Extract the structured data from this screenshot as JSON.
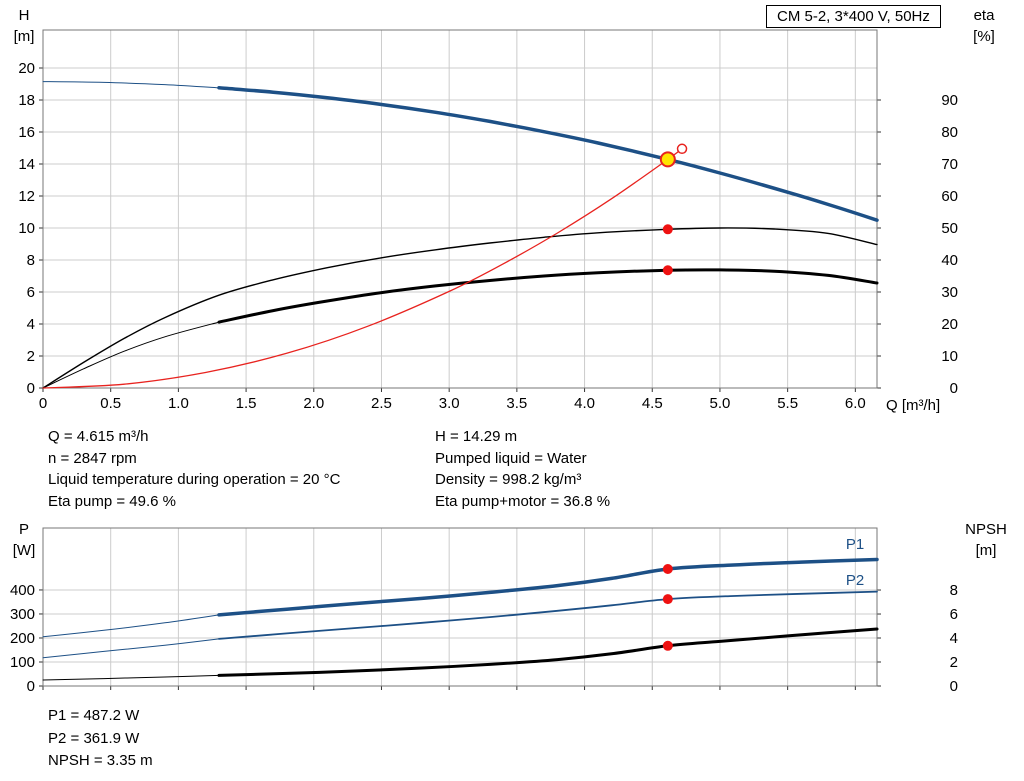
{
  "header": {
    "title_box": "CM 5-2, 3*400 V, 50Hz"
  },
  "top_chart_titles": {
    "left": [
      "H",
      "[m]"
    ],
    "right": [
      "eta",
      "[%]"
    ],
    "x": "Q [m³/h]"
  },
  "bottom_chart_titles": {
    "left": [
      "P",
      "[W]"
    ],
    "right": [
      "NPSH",
      "[m]"
    ]
  },
  "operating_point_info": {
    "left": [
      "Q = 4.615 m³/h",
      "n = 2847 rpm",
      "Liquid temperature during operation = 20 °C",
      "Eta pump = 49.6 %"
    ],
    "right": [
      "H = 14.29 m",
      "Pumped liquid = Water",
      "Density = 998.2 kg/m³",
      "Eta pump+motor = 36.8 %"
    ]
  },
  "bottom_info": [
    "P1 = 487.2 W",
    "P2 = 361.9 W",
    "NPSH = 3.35 m"
  ],
  "colors": {
    "curve_blue": "#1d5086",
    "curve_black": "#000000",
    "curve_red": "#e8231f",
    "marker_red": "#ee1111",
    "duty_yellow": "#ffe400",
    "grid": "#cccccc"
  },
  "chart_data": [
    {
      "type": "line",
      "title": "CM 5-2, 3*400 V, 50Hz",
      "xlabel": "Q [m³/h]",
      "ylabel_left": "H [m]",
      "ylabel_right": "eta [%]",
      "x_range": [
        0,
        6.16
      ],
      "y_left_range": [
        0,
        22.375
      ],
      "y_right_range": [
        0,
        111.875
      ],
      "x_ticks": {
        "values": [
          0,
          0.5,
          1,
          1.5,
          2,
          2.5,
          3,
          3.5,
          4,
          4.5,
          5,
          5.5,
          6
        ],
        "labels": [
          "0",
          "0.5",
          "1.0",
          "1.5",
          "2.0",
          "2.5",
          "3.0",
          "3.5",
          "4.0",
          "4.5",
          "5.0",
          "5.5",
          "6.0"
        ]
      },
      "y_left_ticks": [
        0,
        2,
        4,
        6,
        8,
        10,
        12,
        14,
        16,
        18,
        20
      ],
      "y_right_ticks": [
        0,
        10,
        20,
        30,
        40,
        50,
        60,
        70,
        80,
        90
      ],
      "grid_color": "#cccccc",
      "right_label_x": 958,
      "series": [
        {
          "name": "head-curve-extension",
          "axis": "left",
          "color": "#1d5086",
          "width": 1,
          "points": [
            [
              0,
              19.15
            ],
            [
              0.45,
              19.1
            ],
            [
              0.9,
              18.96
            ],
            [
              1.35,
              18.73
            ]
          ]
        },
        {
          "name": "head-curve",
          "axis": "left",
          "color": "#1d5086",
          "width": 3.5,
          "points": [
            [
              1.3,
              18.76
            ],
            [
              1.7,
              18.49
            ],
            [
              2.1,
              18.14
            ],
            [
              2.5,
              17.72
            ],
            [
              2.9,
              17.23
            ],
            [
              3.3,
              16.66
            ],
            [
              3.7,
              16.02
            ],
            [
              4.1,
              15.31
            ],
            [
              4.615,
              14.29
            ],
            [
              5,
              13.44
            ],
            [
              5.5,
              12.24
            ],
            [
              5.8,
              11.47
            ],
            [
              6.16,
              10.49
            ]
          ]
        },
        {
          "name": "eta-pump-curve",
          "axis": "right",
          "color": "#000000",
          "width": 1.4,
          "points": [
            [
              0,
              0
            ],
            [
              0.3,
              8
            ],
            [
              0.6,
              15.5
            ],
            [
              0.9,
              22
            ],
            [
              1.3,
              29
            ],
            [
              1.7,
              33.8
            ],
            [
              2.1,
              37.6
            ],
            [
              2.5,
              40.7
            ],
            [
              2.9,
              43.2
            ],
            [
              3.3,
              45.3
            ],
            [
              3.7,
              47.1
            ],
            [
              4.1,
              48.5
            ],
            [
              4.615,
              49.6
            ],
            [
              5,
              50
            ],
            [
              5.4,
              49.7
            ],
            [
              5.8,
              48.3
            ],
            [
              6.16,
              44.8
            ]
          ]
        },
        {
          "name": "eta-pump-motor-extension",
          "axis": "right",
          "color": "#000000",
          "width": 1,
          "points": [
            [
              0,
              0
            ],
            [
              0.3,
              6
            ],
            [
              0.6,
              11.5
            ],
            [
              0.9,
              16
            ],
            [
              1.3,
              20.6
            ]
          ]
        },
        {
          "name": "eta-pump-motor-curve",
          "axis": "right",
          "color": "#000000",
          "width": 3,
          "points": [
            [
              1.3,
              20.6
            ],
            [
              1.7,
              24.2
            ],
            [
              2.1,
              27.2
            ],
            [
              2.5,
              29.8
            ],
            [
              2.9,
              31.9
            ],
            [
              3.3,
              33.6
            ],
            [
              3.7,
              35
            ],
            [
              4.1,
              36
            ],
            [
              4.615,
              36.8
            ],
            [
              5,
              36.9
            ],
            [
              5.4,
              36.5
            ],
            [
              5.8,
              35.2
            ],
            [
              6.16,
              32.8
            ]
          ]
        },
        {
          "name": "system-curve",
          "axis": "left",
          "color": "#e8231f",
          "width": 1.3,
          "points": [
            [
              0,
              0
            ],
            [
              0.6,
              0.24
            ],
            [
              1.2,
              0.97
            ],
            [
              1.8,
              2.17
            ],
            [
              2.4,
              3.86
            ],
            [
              3,
              6.04
            ],
            [
              3.4,
              7.76
            ],
            [
              3.8,
              9.69
            ],
            [
              4.2,
              11.83
            ],
            [
              4.615,
              14.29
            ],
            [
              4.72,
              14.95
            ]
          ]
        }
      ],
      "markers": [
        {
          "name": "system-curve-end-ring",
          "axis": "left",
          "q": 4.72,
          "value": 14.95,
          "r": 4.5,
          "fill": "#ffffff",
          "stroke": "#e8231f",
          "stroke_width": 1.5
        },
        {
          "name": "duty-point",
          "axis": "left",
          "q": 4.615,
          "value": 14.29,
          "r": 7,
          "fill": "#ffe400",
          "stroke": "#e8231f",
          "stroke_width": 2
        },
        {
          "name": "eta-pump-point",
          "axis": "right",
          "q": 4.615,
          "value": 49.6,
          "r": 5,
          "fill": "#ee1111"
        },
        {
          "name": "eta-pump-motor-point",
          "axis": "right",
          "q": 4.615,
          "value": 36.8,
          "r": 5,
          "fill": "#ee1111"
        }
      ],
      "curve_labels": []
    },
    {
      "type": "line",
      "title": "",
      "xlabel": "",
      "ylabel_left": "P [W]",
      "ylabel_right": "NPSH [m]",
      "x_range": [
        0,
        6.16
      ],
      "y_left_range": [
        0,
        658
      ],
      "y_right_range": [
        0,
        13.17
      ],
      "x_ticks": {
        "values": [
          0,
          0.5,
          1,
          1.5,
          2,
          2.5,
          3,
          3.5,
          4,
          4.5,
          5,
          5.5,
          6
        ],
        "labels": [
          "",
          "",
          "",
          "",
          "",
          "",
          "",
          "",
          "",
          "",
          "",
          "",
          ""
        ]
      },
      "y_left_ticks": [
        0,
        100,
        200,
        300,
        400
      ],
      "y_right_ticks": [
        0,
        2,
        4,
        6,
        8
      ],
      "grid_color": "#cccccc",
      "right_label_x": 958,
      "series": [
        {
          "name": "p1-extension",
          "axis": "left",
          "color": "#1d5086",
          "width": 1,
          "points": [
            [
              0,
              205
            ],
            [
              0.45,
              232
            ],
            [
              0.9,
              263
            ],
            [
              1.3,
              296
            ]
          ]
        },
        {
          "name": "p1-curve",
          "axis": "left",
          "color": "#1d5086",
          "width": 3.5,
          "points": [
            [
              1.3,
              296
            ],
            [
              1.8,
              320
            ],
            [
              2.3,
              343
            ],
            [
              2.8,
              365
            ],
            [
              3.3,
              390
            ],
            [
              3.8,
              418
            ],
            [
              4.2,
              448
            ],
            [
              4.615,
              487.2
            ],
            [
              5.1,
              504
            ],
            [
              5.6,
              516
            ],
            [
              6.16,
              527
            ]
          ]
        },
        {
          "name": "p2-extension",
          "axis": "left",
          "color": "#1d5086",
          "width": 1,
          "points": [
            [
              0,
              118
            ],
            [
              0.45,
              144
            ],
            [
              0.9,
              170
            ],
            [
              1.3,
              196
            ]
          ]
        },
        {
          "name": "p2-curve",
          "axis": "left",
          "color": "#1d5086",
          "width": 1.8,
          "points": [
            [
              1.3,
              196
            ],
            [
              1.8,
              219
            ],
            [
              2.3,
              241
            ],
            [
              2.8,
              263
            ],
            [
              3.3,
              287
            ],
            [
              3.8,
              313
            ],
            [
              4.2,
              336
            ],
            [
              4.615,
              361.9
            ],
            [
              5.1,
              375
            ],
            [
              5.6,
              384
            ],
            [
              6.16,
              393
            ]
          ]
        },
        {
          "name": "npsh-extension",
          "axis": "right",
          "color": "#000000",
          "width": 1,
          "points": [
            [
              0,
              0.5
            ],
            [
              0.45,
              0.62
            ],
            [
              0.9,
              0.75
            ],
            [
              1.3,
              0.88
            ]
          ]
        },
        {
          "name": "npsh-curve",
          "axis": "right",
          "color": "#000000",
          "width": 3,
          "points": [
            [
              1.3,
              0.88
            ],
            [
              1.8,
              1.05
            ],
            [
              2.3,
              1.25
            ],
            [
              2.8,
              1.5
            ],
            [
              3.3,
              1.8
            ],
            [
              3.8,
              2.2
            ],
            [
              4.2,
              2.68
            ],
            [
              4.615,
              3.35
            ],
            [
              5,
              3.72
            ],
            [
              5.5,
              4.18
            ],
            [
              6.16,
              4.75
            ]
          ]
        }
      ],
      "markers": [
        {
          "name": "p1-point",
          "axis": "left",
          "q": 4.615,
          "value": 487.2,
          "r": 5,
          "fill": "#ee1111"
        },
        {
          "name": "p2-point",
          "axis": "left",
          "q": 4.615,
          "value": 361.9,
          "r": 5,
          "fill": "#ee1111"
        },
        {
          "name": "npsh-point",
          "axis": "right",
          "q": 4.615,
          "value": 3.35,
          "r": 5,
          "fill": "#ee1111"
        }
      ],
      "curve_labels": [
        {
          "text": "P1",
          "q": 5.93,
          "value": 571,
          "axis": "left",
          "color": "#1d5086"
        },
        {
          "text": "P2",
          "q": 5.93,
          "value": 421,
          "axis": "left",
          "color": "#1d5086"
        }
      ]
    }
  ]
}
